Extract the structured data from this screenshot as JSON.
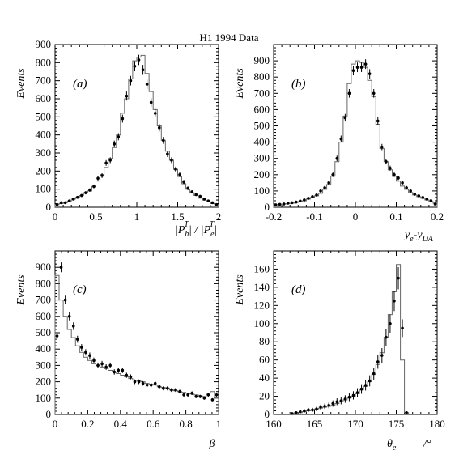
{
  "title": "H1 1994 Data",
  "chart_data": [
    {
      "type": "scatter",
      "panel": "(a)",
      "ylabel": "Events",
      "xlabel": "|P_h^T| / |P_e^T|",
      "xlim": [
        0,
        2
      ],
      "ylim": [
        0,
        900
      ],
      "xticks": [
        0,
        0.5,
        1,
        1.5,
        2
      ],
      "xtick_labels": [
        "0",
        "0.5",
        "1",
        "1.5",
        "2"
      ],
      "yticks": [
        0,
        100,
        200,
        300,
        400,
        500,
        600,
        700,
        800,
        900
      ],
      "ytick_labels": [
        "0",
        "100",
        "200",
        "300",
        "400",
        "500",
        "600",
        "700",
        "800",
        "900"
      ],
      "series": [
        {
          "kind": "data-points",
          "x": [
            0.025,
            0.075,
            0.125,
            0.175,
            0.225,
            0.275,
            0.325,
            0.375,
            0.425,
            0.475,
            0.525,
            0.575,
            0.625,
            0.675,
            0.725,
            0.775,
            0.825,
            0.875,
            0.925,
            0.975,
            1.025,
            1.075,
            1.125,
            1.175,
            1.225,
            1.275,
            1.325,
            1.375,
            1.425,
            1.475,
            1.525,
            1.575,
            1.625,
            1.675,
            1.725,
            1.775,
            1.825,
            1.875,
            1.925,
            1.975
          ],
          "y": [
            15,
            25,
            25,
            35,
            45,
            55,
            65,
            80,
            95,
            115,
            160,
            175,
            245,
            260,
            350,
            390,
            490,
            615,
            700,
            780,
            815,
            760,
            680,
            580,
            520,
            440,
            370,
            295,
            260,
            210,
            180,
            140,
            105,
            85,
            70,
            60,
            45,
            35,
            25,
            15
          ]
        },
        {
          "kind": "mc-histogram",
          "x": [
            0.025,
            0.075,
            0.125,
            0.175,
            0.225,
            0.275,
            0.325,
            0.375,
            0.425,
            0.475,
            0.525,
            0.575,
            0.625,
            0.675,
            0.725,
            0.775,
            0.825,
            0.875,
            0.925,
            0.975,
            1.025,
            1.075,
            1.125,
            1.175,
            1.225,
            1.275,
            1.325,
            1.375,
            1.425,
            1.475,
            1.525,
            1.575,
            1.625,
            1.675,
            1.725,
            1.775,
            1.825,
            1.875,
            1.925,
            1.975
          ],
          "y": [
            15,
            20,
            25,
            35,
            45,
            55,
            65,
            80,
            90,
            115,
            145,
            180,
            220,
            270,
            330,
            400,
            520,
            600,
            710,
            810,
            830,
            840,
            740,
            640,
            540,
            450,
            370,
            310,
            260,
            210,
            170,
            130,
            100,
            80,
            65,
            50,
            40,
            30,
            20,
            15
          ]
        }
      ]
    },
    {
      "type": "scatter",
      "panel": "(b)",
      "ylabel": "Events",
      "xlabel": "y_e-y_DA",
      "xlim": [
        -0.2,
        0.2
      ],
      "ylim": [
        0,
        1000
      ],
      "xticks": [
        -0.2,
        -0.1,
        0,
        0.1,
        0.2
      ],
      "xtick_labels": [
        "-0.2",
        "-0.1",
        "0",
        "0.1",
        "0.2"
      ],
      "yticks": [
        0,
        100,
        200,
        300,
        400,
        500,
        600,
        700,
        800,
        900
      ],
      "ytick_labels": [
        "0",
        "100",
        "200",
        "300",
        "400",
        "500",
        "600",
        "700",
        "800",
        "900"
      ],
      "series": [
        {
          "kind": "data-points",
          "x": [
            -0.195,
            -0.185,
            -0.175,
            -0.165,
            -0.155,
            -0.145,
            -0.135,
            -0.125,
            -0.115,
            -0.105,
            -0.095,
            -0.085,
            -0.075,
            -0.065,
            -0.055,
            -0.045,
            -0.035,
            -0.025,
            -0.015,
            -0.005,
            0.005,
            0.015,
            0.025,
            0.035,
            0.045,
            0.055,
            0.065,
            0.075,
            0.085,
            0.095,
            0.105,
            0.115,
            0.125,
            0.135,
            0.145,
            0.155,
            0.165,
            0.175,
            0.185,
            0.195
          ],
          "y": [
            15,
            18,
            20,
            25,
            28,
            32,
            38,
            45,
            55,
            65,
            75,
            100,
            120,
            150,
            200,
            300,
            420,
            550,
            700,
            840,
            860,
            860,
            880,
            820,
            700,
            530,
            370,
            280,
            240,
            200,
            180,
            150,
            120,
            100,
            80,
            70,
            60,
            50,
            40,
            20
          ]
        },
        {
          "kind": "mc-histogram",
          "x": [
            -0.195,
            -0.185,
            -0.175,
            -0.165,
            -0.155,
            -0.145,
            -0.135,
            -0.125,
            -0.115,
            -0.105,
            -0.095,
            -0.085,
            -0.075,
            -0.065,
            -0.055,
            -0.045,
            -0.035,
            -0.025,
            -0.015,
            -0.005,
            0.005,
            0.015,
            0.025,
            0.035,
            0.045,
            0.055,
            0.065,
            0.075,
            0.085,
            0.095,
            0.105,
            0.115,
            0.125,
            0.135,
            0.145,
            0.155,
            0.165,
            0.175,
            0.185,
            0.195
          ],
          "y": [
            15,
            18,
            20,
            22,
            25,
            30,
            35,
            40,
            50,
            60,
            70,
            85,
            110,
            140,
            190,
            280,
            400,
            560,
            760,
            880,
            900,
            890,
            860,
            780,
            680,
            510,
            360,
            280,
            230,
            190,
            160,
            130,
            110,
            90,
            75,
            65,
            55,
            45,
            35,
            25
          ]
        }
      ]
    },
    {
      "type": "scatter",
      "panel": "(c)",
      "ylabel": "Events",
      "xlabel": "β",
      "xlim": [
        0,
        1
      ],
      "ylim": [
        0,
        1000
      ],
      "xticks": [
        0,
        0.2,
        0.4,
        0.6,
        0.8,
        1
      ],
      "xtick_labels": [
        "0",
        "0.2",
        "0.4",
        "0.6",
        "0.8",
        "1"
      ],
      "yticks": [
        0,
        100,
        200,
        300,
        400,
        500,
        600,
        700,
        800,
        900
      ],
      "ytick_labels": [
        "0",
        "100",
        "200",
        "300",
        "400",
        "500",
        "600",
        "700",
        "800",
        "900"
      ],
      "series": [
        {
          "kind": "data-points",
          "x": [
            0.0125,
            0.0375,
            0.0625,
            0.0875,
            0.1125,
            0.1375,
            0.1625,
            0.1875,
            0.2125,
            0.2375,
            0.2625,
            0.2875,
            0.3125,
            0.3375,
            0.3625,
            0.3875,
            0.4125,
            0.4375,
            0.4625,
            0.4875,
            0.5125,
            0.5375,
            0.5625,
            0.5875,
            0.6125,
            0.6375,
            0.6625,
            0.6875,
            0.7125,
            0.7375,
            0.7625,
            0.7875,
            0.8125,
            0.8375,
            0.8625,
            0.8875,
            0.9125,
            0.9375,
            0.9625,
            0.9875
          ],
          "y": [
            480,
            900,
            700,
            600,
            540,
            460,
            410,
            380,
            360,
            330,
            300,
            310,
            290,
            300,
            260,
            270,
            270,
            240,
            230,
            200,
            200,
            190,
            180,
            180,
            190,
            170,
            160,
            160,
            150,
            150,
            140,
            120,
            120,
            130,
            110,
            110,
            100,
            120,
            90,
            120
          ]
        },
        {
          "kind": "mc-histogram",
          "x": [
            0.0125,
            0.0375,
            0.0625,
            0.0875,
            0.1125,
            0.1375,
            0.1625,
            0.1875,
            0.2125,
            0.2375,
            0.2625,
            0.2875,
            0.3125,
            0.3375,
            0.3625,
            0.3875,
            0.4125,
            0.4375,
            0.4625,
            0.4875,
            0.5125,
            0.5375,
            0.5625,
            0.5875,
            0.6125,
            0.6375,
            0.6625,
            0.6875,
            0.7125,
            0.7375,
            0.7625,
            0.7875,
            0.8125,
            0.8375,
            0.8625,
            0.8875,
            0.9125,
            0.9375,
            0.9625,
            0.9875
          ],
          "y": [
            850,
            700,
            600,
            520,
            470,
            420,
            380,
            350,
            330,
            310,
            300,
            290,
            280,
            270,
            260,
            250,
            240,
            230,
            220,
            210,
            205,
            200,
            190,
            185,
            180,
            170,
            165,
            160,
            150,
            145,
            140,
            135,
            130,
            125,
            120,
            115,
            110,
            130,
            140,
            100
          ]
        }
      ]
    },
    {
      "type": "scatter",
      "panel": "(d)",
      "ylabel": "Events",
      "xlabel": "θ_e",
      "xunit": "/°",
      "xlim": [
        160,
        180
      ],
      "ylim": [
        0,
        180
      ],
      "xticks": [
        160,
        165,
        170,
        175,
        180
      ],
      "xtick_labels": [
        "160",
        "165",
        "170",
        "175",
        "180"
      ],
      "yticks": [
        0,
        20,
        40,
        60,
        80,
        100,
        120,
        140,
        160
      ],
      "ytick_labels": [
        "0",
        "20",
        "40",
        "60",
        "80",
        "100",
        "120",
        "140",
        "160"
      ],
      "series": [
        {
          "kind": "data-points",
          "x": [
            162.25,
            162.75,
            163.25,
            163.75,
            164.25,
            164.75,
            165.25,
            165.75,
            166.25,
            166.75,
            167.25,
            167.75,
            168.25,
            168.75,
            169.25,
            169.75,
            170.25,
            170.75,
            171.25,
            171.75,
            172.25,
            172.75,
            173.25,
            173.75,
            174.25,
            174.75,
            175.25,
            175.75,
            176.25
          ],
          "y": [
            1,
            2,
            3,
            4,
            5,
            5,
            6,
            8,
            9,
            10,
            12,
            14,
            15,
            17,
            19,
            21,
            24,
            28,
            32,
            37,
            45,
            58,
            65,
            85,
            100,
            125,
            150,
            95,
            2
          ]
        },
        {
          "kind": "mc-histogram",
          "x": [
            162.25,
            162.75,
            163.25,
            163.75,
            164.25,
            164.75,
            165.25,
            165.75,
            166.25,
            166.75,
            167.25,
            167.75,
            168.25,
            168.75,
            169.25,
            169.75,
            170.25,
            170.75,
            171.25,
            171.75,
            172.25,
            172.75,
            173.25,
            173.75,
            174.25,
            174.75,
            175.25,
            175.75,
            176.25
          ],
          "y": [
            1,
            2,
            2,
            3,
            4,
            5,
            6,
            7,
            8,
            9,
            10,
            12,
            14,
            16,
            18,
            20,
            23,
            27,
            31,
            36,
            44,
            55,
            68,
            85,
            110,
            135,
            165,
            60,
            2
          ]
        }
      ]
    }
  ]
}
